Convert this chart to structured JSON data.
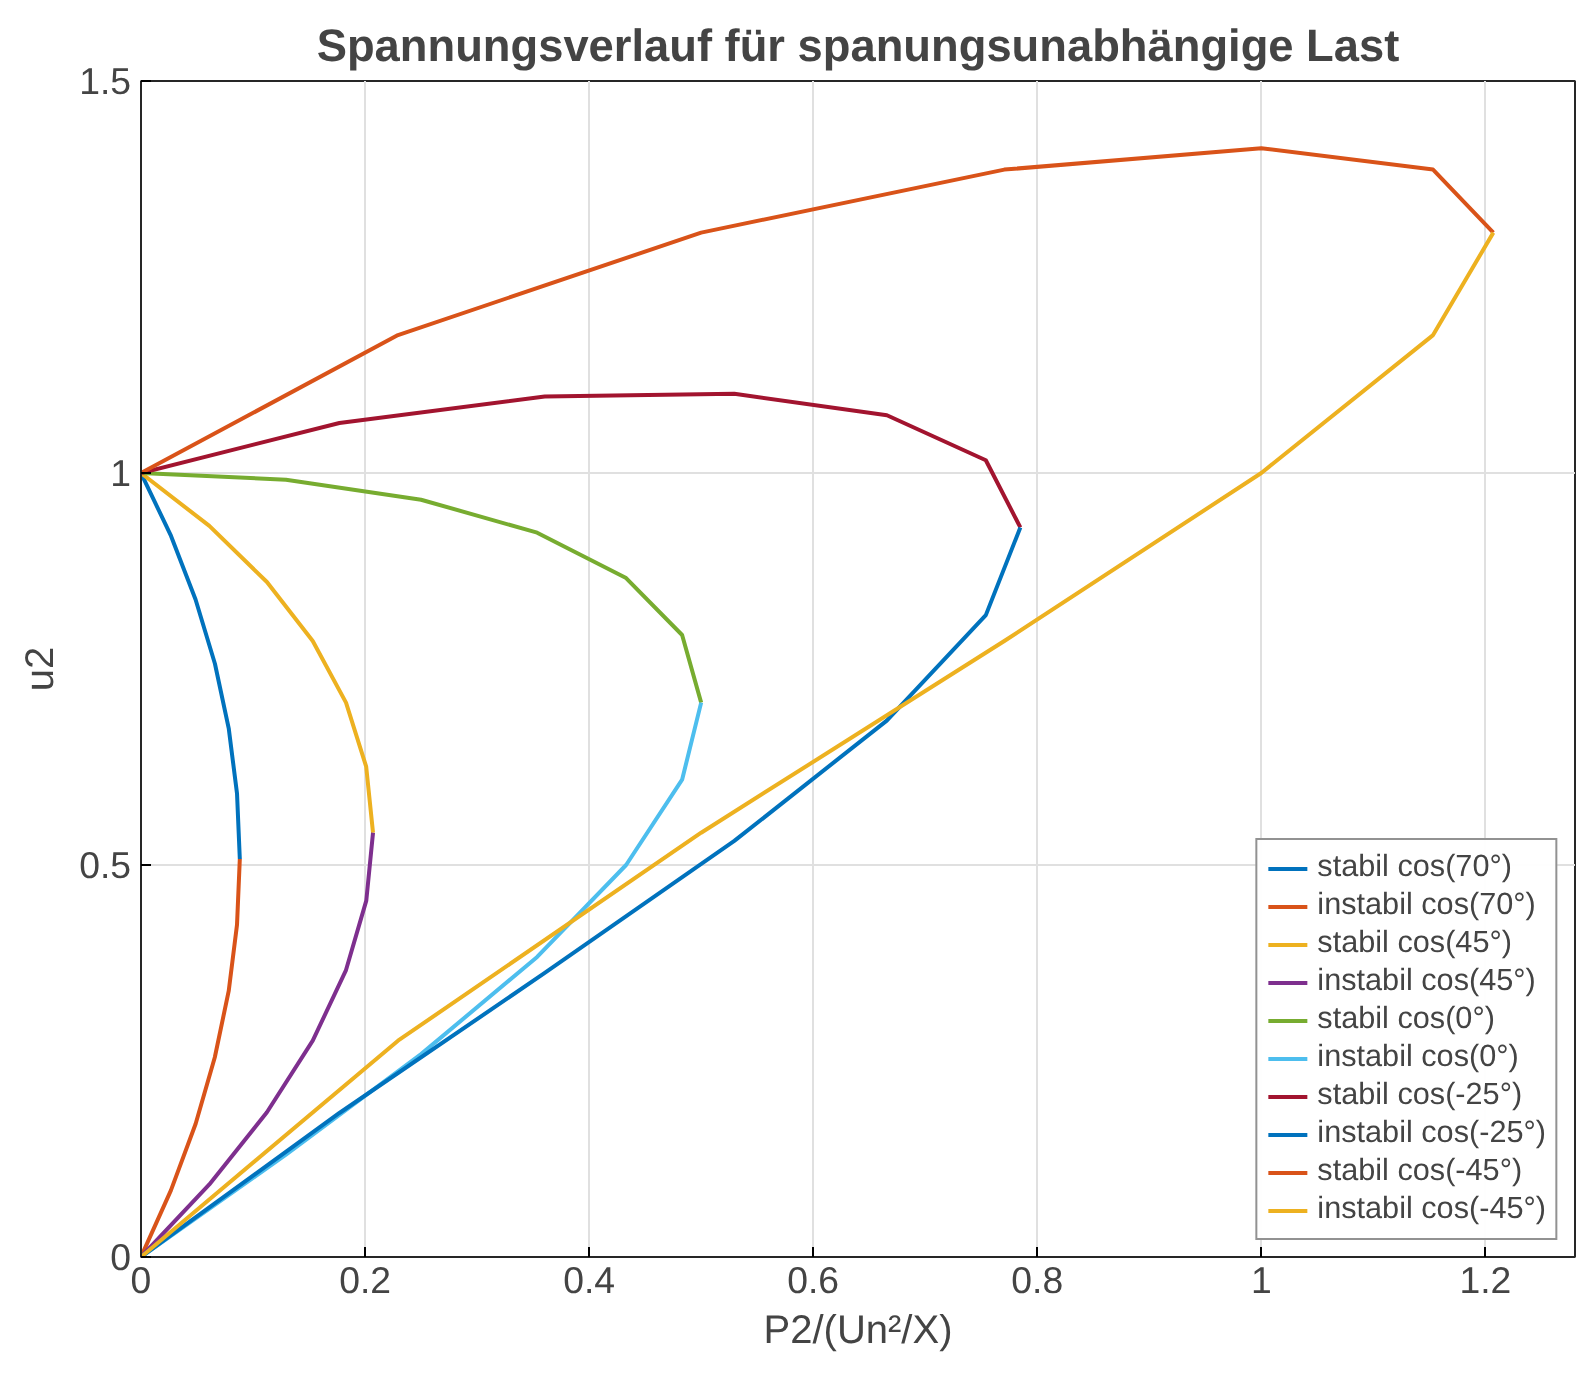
{
  "chart_data": {
    "type": "line",
    "title": "Spannungsverlauf für spanungsunabhängige Last",
    "xlabel": "P2/(Un²/X)",
    "ylabel": "u2",
    "xlim": [
      0,
      1.28
    ],
    "ylim": [
      0,
      1.5
    ],
    "xticks": [
      0,
      0.2,
      0.4,
      0.6,
      0.8,
      1,
      1.2
    ],
    "yticks": [
      0,
      0.5,
      1,
      1.5
    ],
    "grid": true,
    "legend": "bottom right",
    "line_style": "solid",
    "marker": "none",
    "series": [
      {
        "name": "stabil cos(70°)",
        "color": "#0072bd",
        "x": [
          0,
          0.0268,
          0.0487,
          0.066,
          0.0783,
          0.0857,
          0.0882
        ],
        "values": [
          1.0,
          0.9197,
          0.8386,
          0.7567,
          0.6743,
          0.5913,
          0.5077
        ]
      },
      {
        "name": "instabil cos(70°)",
        "color": "#d95319",
        "x": [
          0.0882,
          0.0857,
          0.0783,
          0.0659,
          0.0488,
          0.0267,
          0
        ],
        "values": [
          0.5077,
          0.4237,
          0.3394,
          0.2548,
          0.17,
          0.085,
          0
        ]
      },
      {
        "name": "stabil cos(45°)",
        "color": "#edb120",
        "x": [
          0,
          0.061,
          0.1124,
          0.1533,
          0.183,
          0.201,
          0.2071
        ],
        "values": [
          1.0,
          0.9325,
          0.8609,
          0.7857,
          0.7071,
          0.6255,
          0.5412
        ]
      },
      {
        "name": "instabil cos(45°)",
        "color": "#7e2f8e",
        "x": [
          0.2071,
          0.2011,
          0.183,
          0.1533,
          0.1124,
          0.061,
          0
        ],
        "values": [
          0.5412,
          0.4546,
          0.366,
          0.2759,
          0.1846,
          0.0925,
          0
        ]
      },
      {
        "name": "stabil cos(0°)",
        "color": "#77ac30",
        "x": [
          0,
          0.1294,
          0.25,
          0.3536,
          0.433,
          0.483,
          0.5
        ],
        "values": [
          1.0,
          0.9914,
          0.9659,
          0.9239,
          0.866,
          0.7934,
          0.7071
        ]
      },
      {
        "name": "instabil cos(0°)",
        "color": "#4dbeee",
        "x": [
          0.5,
          0.483,
          0.433,
          0.3536,
          0.25,
          0.1294,
          0
        ],
        "values": [
          0.7071,
          0.6088,
          0.5,
          0.3827,
          0.2588,
          0.1305,
          0
        ]
      },
      {
        "name": "stabil cos(-25°)",
        "color": "#a2142f",
        "x": [
          0,
          0.1771,
          0.3604,
          0.5296,
          0.6658,
          0.7541,
          0.7849
        ],
        "values": [
          1.0,
          1.0637,
          1.0977,
          1.101,
          1.0736,
          1.0163,
          0.9306
        ]
      },
      {
        "name": "instabil cos(-25°)",
        "color": "#0072bd",
        "x": [
          0.7849,
          0.7541,
          0.6657,
          0.5296,
          0.3604,
          0.1771,
          0
        ],
        "values": [
          0.9306,
          0.8187,
          0.6842,
          0.5307,
          0.3623,
          0.1837,
          0
        ]
      },
      {
        "name": "stabil cos(-45°)",
        "color": "#d95319",
        "x": [
          0,
          0.2294,
          0.5,
          0.7706,
          1.0,
          1.1533,
          1.2071
        ],
        "values": [
          1.0,
          1.1759,
          1.3066,
          1.387,
          1.4142,
          1.387,
          1.3066
        ]
      },
      {
        "name": "instabil cos(-45°)",
        "color": "#edb120",
        "x": [
          1.2071,
          1.1533,
          1.0,
          0.7706,
          0.5,
          0.2294,
          0
        ],
        "values": [
          1.3066,
          1.1759,
          1.0,
          0.7857,
          0.5412,
          0.2759,
          0
        ]
      }
    ]
  }
}
